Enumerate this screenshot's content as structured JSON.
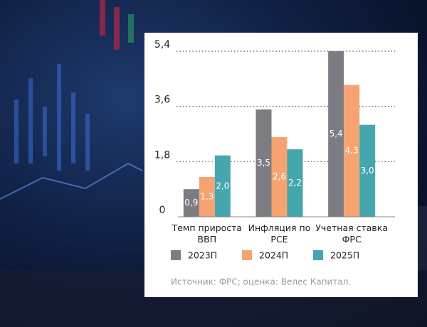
{
  "chart_data": {
    "type": "bar",
    "categories": [
      "Темп прироста ВВП",
      "Инфляция по PCE",
      "Учетная ставка ФРС"
    ],
    "series": [
      {
        "name": "2023П",
        "color": "#7d7c82",
        "values": [
          0.9,
          3.5,
          5.4
        ],
        "value_labels": [
          "0,9",
          "3,5",
          "5,4"
        ]
      },
      {
        "name": "2024П",
        "color": "#f6a372",
        "values": [
          1.3,
          2.6,
          4.3
        ],
        "value_labels": [
          "1,3",
          "2,6",
          "4,3"
        ]
      },
      {
        "name": "2025П",
        "color": "#45a6ae",
        "values": [
          2.0,
          2.2,
          3.0
        ],
        "value_labels": [
          "2,0",
          "2,2",
          "3,0"
        ]
      }
    ],
    "ylim": [
      0,
      5.4
    ],
    "yticks": [
      0,
      {
        "value": 1.8,
        "label": "1,8"
      },
      {
        "value": 3.6,
        "label": "3,6"
      },
      {
        "value": 5.4,
        "label": "5,4"
      }
    ],
    "grid": true,
    "source": "Источник: ФРС; оценка: Велес Капитал."
  }
}
